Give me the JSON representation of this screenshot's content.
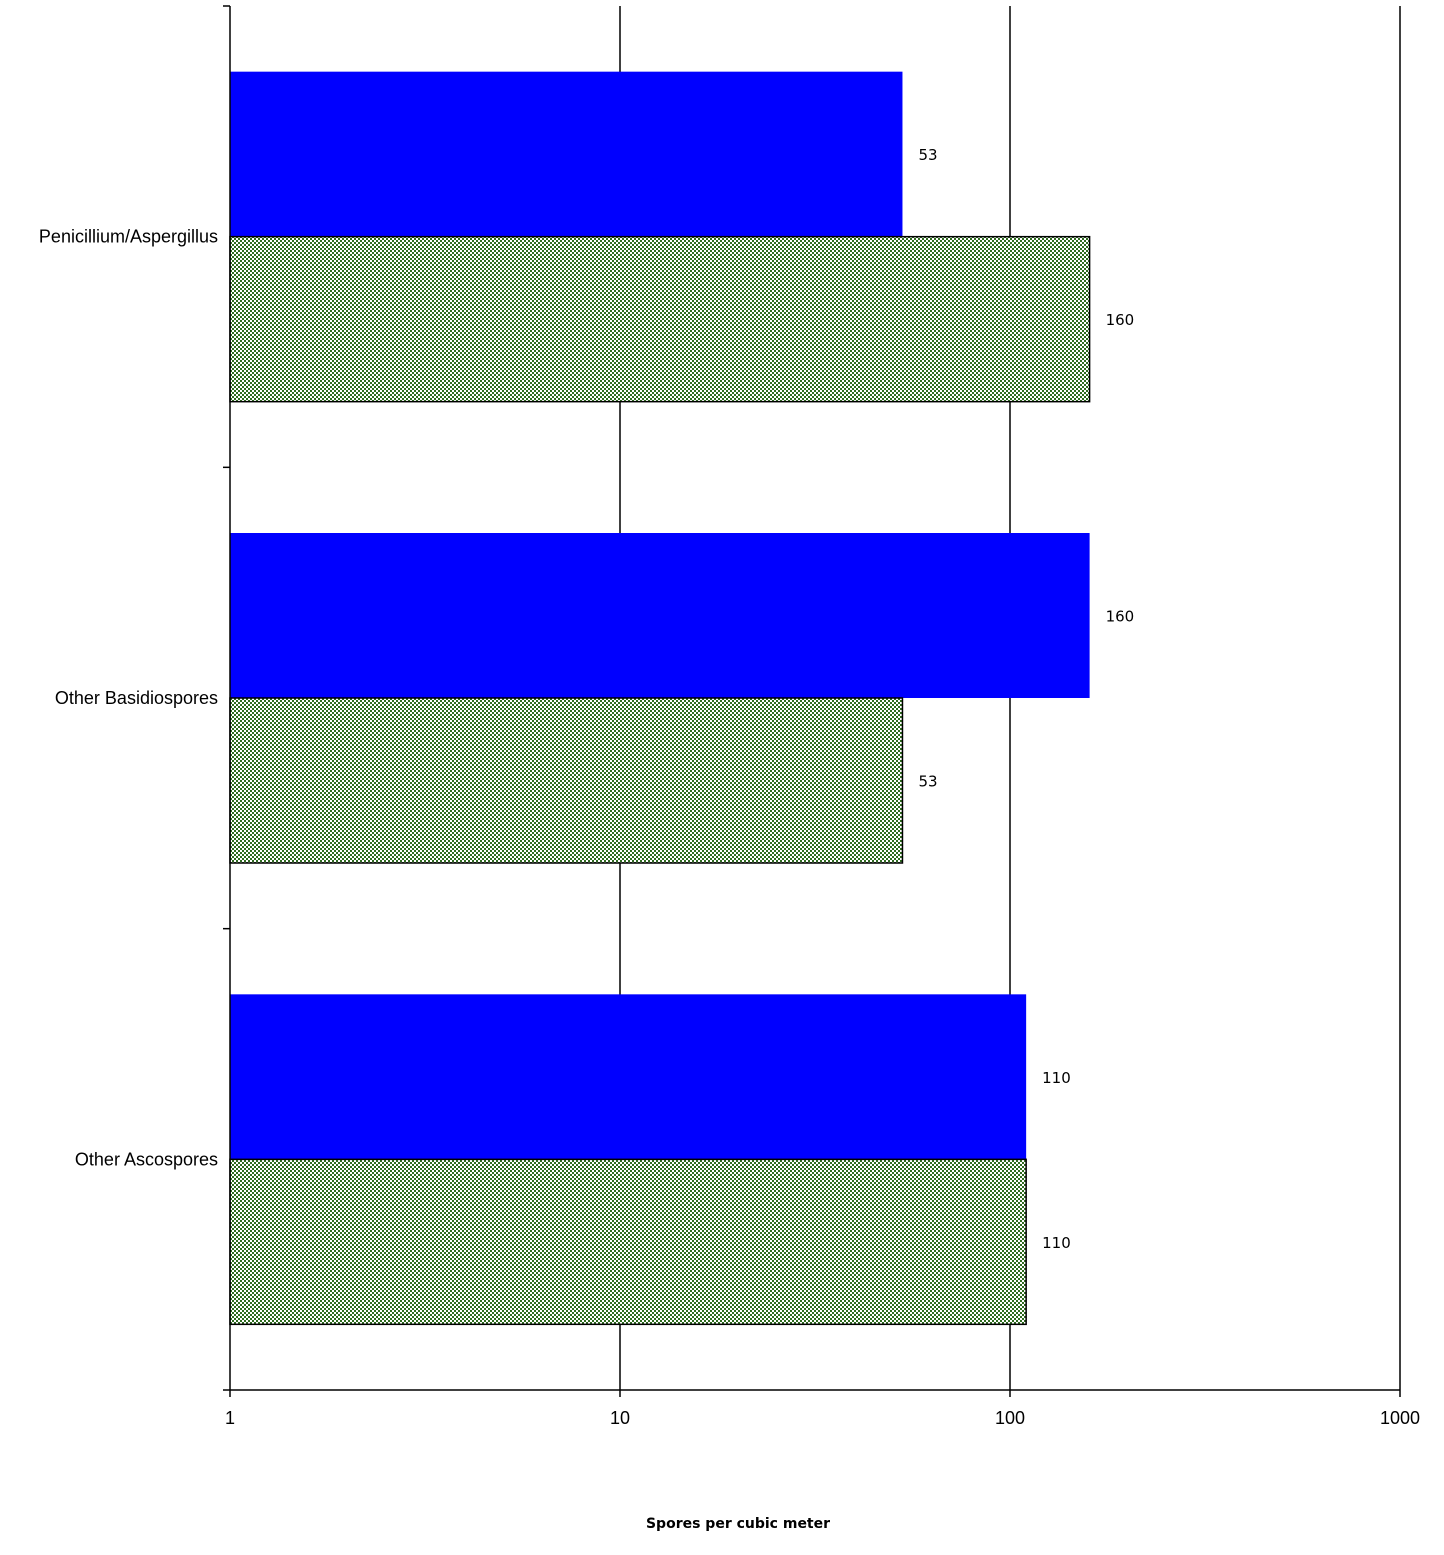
{
  "chart_data": {
    "type": "bar",
    "orientation": "horizontal",
    "x_scale": "log",
    "xlim": [
      1,
      1000
    ],
    "x_ticks": [
      "1",
      "10",
      "100",
      "1000"
    ],
    "xlabel": "Spores per cubic meter",
    "ylabel": "",
    "title": "",
    "grid": "vertical major gridlines",
    "legend": "none",
    "categories": [
      "Penicillium/Aspergillus",
      "Other Basidiospores",
      "Other Ascospores"
    ],
    "series": [
      {
        "color": "#0000ff",
        "fill": "solid",
        "values": [
          53,
          160,
          110
        ]
      },
      {
        "color": "#2e6b1f",
        "fill": "checkered",
        "values": [
          160,
          53,
          110
        ]
      }
    ],
    "data_labels": [
      [
        "53",
        "160",
        "110"
      ],
      [
        "160",
        "53",
        "110"
      ]
    ]
  }
}
